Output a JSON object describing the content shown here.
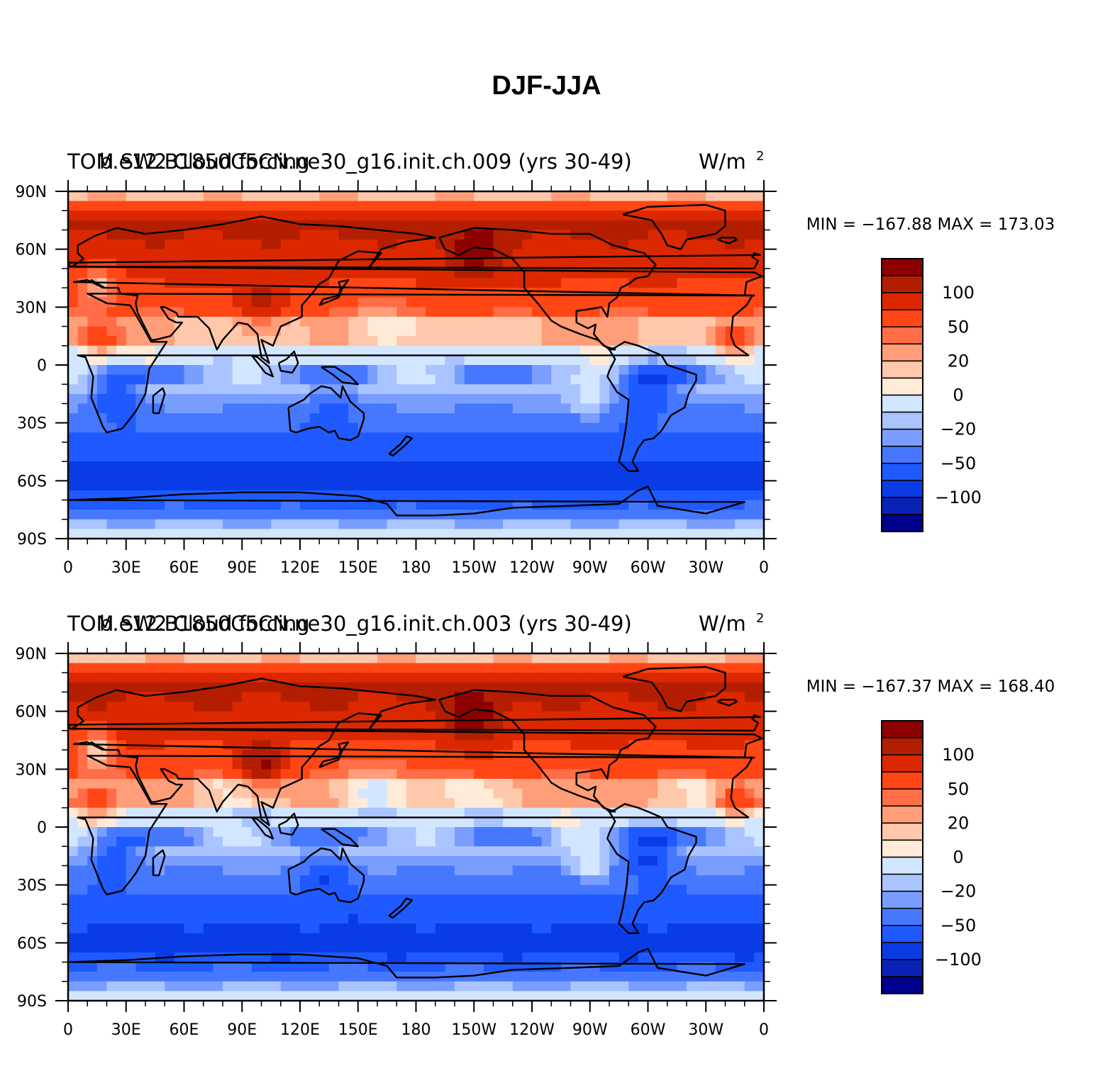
{
  "page": {
    "title": "DJF-JJA"
  },
  "colors": {
    "palette": [
      "#00008c",
      "#0a22b4",
      "#0a3ce6",
      "#1e5aff",
      "#4678ff",
      "#7a9eff",
      "#aac4ff",
      "#d2e6ff",
      "#ffebd7",
      "#ffc8aa",
      "#ff9e78",
      "#ff6e46",
      "#ff4614",
      "#dc2800",
      "#b41e00",
      "#8c0000"
    ],
    "coast": "#000000"
  },
  "chart_data": [
    {
      "type": "heatmap",
      "variable": "TOM SW2 Cloud forcing",
      "case": "b.e12.B1850C5CN.ne30_g16.init.ch.009 (yrs 30-49)",
      "units": "W/m",
      "units_superscript": "2",
      "stats_text": "MIN = −167.88 MAX = 173.03",
      "min": -167.88,
      "max": 173.03,
      "x_ticks": [
        "0",
        "30E",
        "60E",
        "90E",
        "120E",
        "150E",
        "180",
        "150W",
        "120W",
        "90W",
        "60W",
        "30W",
        "0"
      ],
      "y_ticks": [
        "90N",
        "60N",
        "30N",
        "0",
        "30S",
        "60S",
        "90S"
      ],
      "colorbar_labels": [
        "100",
        "50",
        "20",
        "0",
        "−20",
        "−50",
        "−100"
      ],
      "colorbar_levels": [
        -100,
        -50,
        -20,
        0,
        20,
        50,
        100
      ]
    },
    {
      "type": "heatmap",
      "variable": "TOM SW2 Cloud forcing",
      "case": "b.e12.B1850C5CN.ne30_g16.init.ch.003 (yrs 30-49)",
      "units": "W/m",
      "units_superscript": "2",
      "stats_text": "MIN = −167.37 MAX = 168.40",
      "min": -167.37,
      "max": 168.4,
      "x_ticks": [
        "0",
        "30E",
        "60E",
        "90E",
        "120E",
        "150E",
        "180",
        "150W",
        "120W",
        "90W",
        "60W",
        "30W",
        "0"
      ],
      "y_ticks": [
        "90N",
        "60N",
        "30N",
        "0",
        "30S",
        "60S",
        "90S"
      ],
      "colorbar_labels": [
        "100",
        "50",
        "20",
        "0",
        "−20",
        "−50",
        "−100"
      ],
      "colorbar_levels": [
        -100,
        -50,
        -20,
        0,
        20,
        50,
        100
      ]
    }
  ]
}
